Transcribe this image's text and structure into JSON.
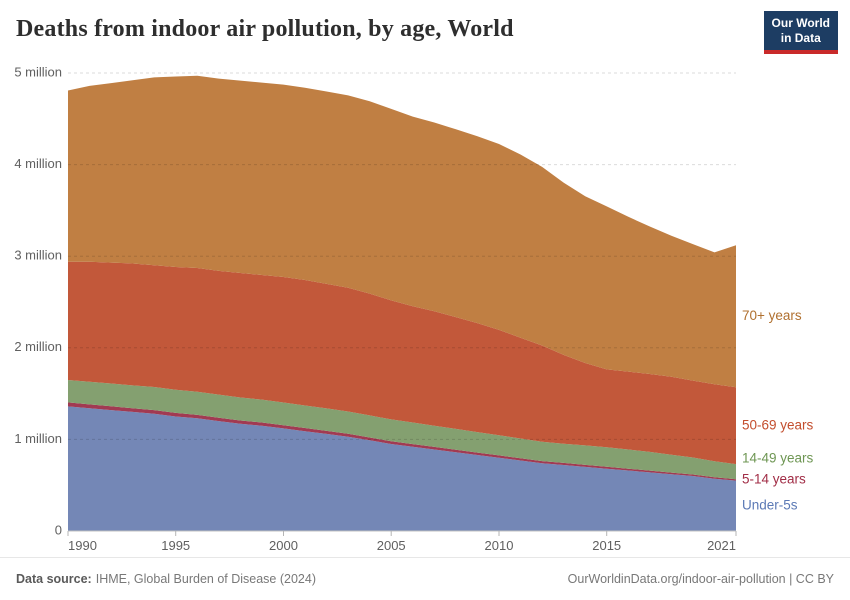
{
  "header": {
    "logo": {
      "line1": "Our World",
      "line2": "in Data",
      "navy": "#1d3d63",
      "red": "#c92a2a"
    }
  },
  "footer": {
    "datasource_label": "Data source:",
    "datasource_value": "IHME, Global Burden of Disease (2024)",
    "credit": "OurWorldinData.org/indoor-air-pollution | CC BY"
  },
  "chart_data": {
    "type": "area",
    "stacked": true,
    "title": "Deaths from indoor air pollution, by age, World",
    "ylim": [
      0,
      5
    ],
    "grid": "dashed-horizontal",
    "legend_position": "right-of-plot",
    "x_years": [
      1990,
      1991,
      1992,
      1993,
      1994,
      1995,
      1996,
      1997,
      1998,
      1999,
      2000,
      2001,
      2002,
      2003,
      2004,
      2005,
      2006,
      2007,
      2008,
      2009,
      2010,
      2011,
      2012,
      2013,
      2014,
      2015,
      2016,
      2017,
      2018,
      2019,
      2020,
      2021
    ],
    "xticks": [
      1990,
      1995,
      2000,
      2005,
      2010,
      2015,
      2021
    ],
    "yticks": [
      {
        "value": 0,
        "label": "0"
      },
      {
        "value": 1,
        "label": "1 million"
      },
      {
        "value": 2,
        "label": "2 million"
      },
      {
        "value": 3,
        "label": "3 million"
      },
      {
        "value": 4,
        "label": "4 million"
      },
      {
        "value": 5,
        "label": "5 million"
      }
    ],
    "unit_hint": "deaths per year (millions)",
    "series": [
      {
        "name": "Under-5s",
        "color": "#7487b6",
        "label_color": "#5b79b5",
        "values": [
          1.36,
          1.34,
          1.32,
          1.3,
          1.28,
          1.25,
          1.23,
          1.2,
          1.17,
          1.15,
          1.12,
          1.09,
          1.06,
          1.03,
          0.99,
          0.95,
          0.92,
          0.89,
          0.86,
          0.83,
          0.8,
          0.77,
          0.74,
          0.72,
          0.7,
          0.68,
          0.66,
          0.64,
          0.62,
          0.6,
          0.57,
          0.55
        ]
      },
      {
        "name": "5-14 years",
        "color": "#a13a52",
        "label_color": "#a12d46",
        "values": [
          0.044,
          0.042,
          0.041,
          0.04,
          0.04,
          0.039,
          0.038,
          0.037,
          0.036,
          0.035,
          0.035,
          0.034,
          0.033,
          0.032,
          0.031,
          0.03,
          0.029,
          0.028,
          0.027,
          0.026,
          0.025,
          0.024,
          0.023,
          0.023,
          0.022,
          0.021,
          0.02,
          0.019,
          0.018,
          0.017,
          0.016,
          0.015
        ]
      },
      {
        "name": "14-49 years",
        "color": "#84a070",
        "label_color": "#6e9653",
        "values": [
          0.245,
          0.247,
          0.249,
          0.25,
          0.252,
          0.253,
          0.253,
          0.252,
          0.251,
          0.25,
          0.248,
          0.246,
          0.245,
          0.243,
          0.241,
          0.238,
          0.235,
          0.232,
          0.228,
          0.224,
          0.22,
          0.216,
          0.212,
          0.21,
          0.212,
          0.213,
          0.21,
          0.205,
          0.195,
          0.185,
          0.175,
          0.165
        ]
      },
      {
        "name": "50-69 years",
        "color": "#c2583a",
        "label_color": "#c34e2e",
        "values": [
          1.29,
          1.31,
          1.32,
          1.33,
          1.33,
          1.34,
          1.35,
          1.35,
          1.36,
          1.36,
          1.37,
          1.37,
          1.36,
          1.35,
          1.33,
          1.3,
          1.27,
          1.25,
          1.22,
          1.19,
          1.15,
          1.1,
          1.05,
          0.97,
          0.9,
          0.85,
          0.85,
          0.85,
          0.85,
          0.84,
          0.84,
          0.84
        ]
      },
      {
        "name": "70+ years",
        "color": "#c07f43",
        "label_color": "#b0702f",
        "values": [
          1.87,
          1.92,
          1.96,
          2.0,
          2.05,
          2.08,
          2.1,
          2.1,
          2.1,
          2.1,
          2.1,
          2.1,
          2.1,
          2.1,
          2.1,
          2.09,
          2.07,
          2.06,
          2.05,
          2.04,
          2.03,
          2.0,
          1.95,
          1.88,
          1.82,
          1.78,
          1.69,
          1.61,
          1.54,
          1.49,
          1.44,
          1.55
        ]
      }
    ]
  }
}
